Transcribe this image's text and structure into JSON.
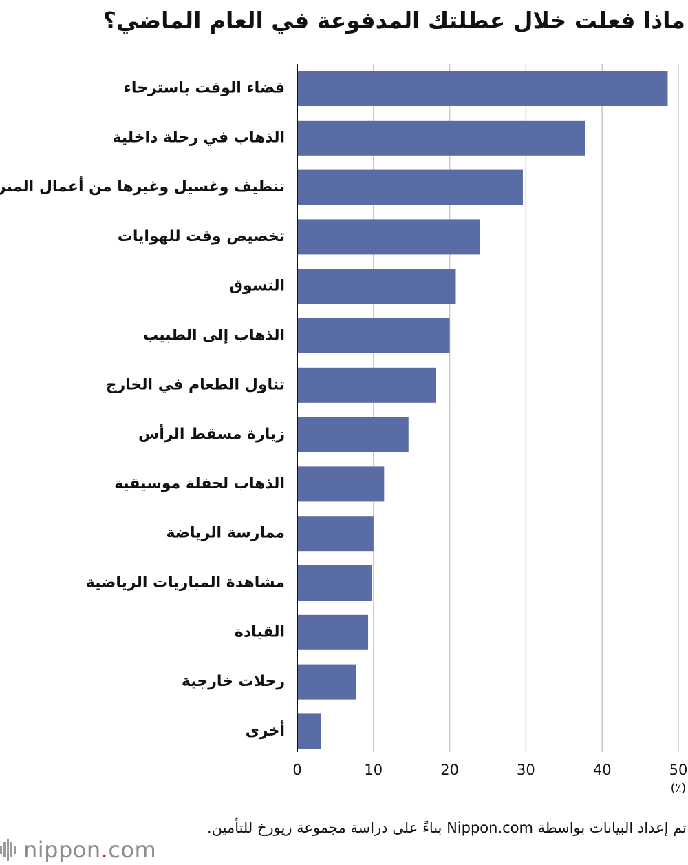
{
  "chart_data": {
    "type": "bar",
    "orientation": "horizontal",
    "title": "ماذا فعلت خلال عطلتك المدفوعة في العام الماضي؟",
    "categories": [
      "قضاء الوقت باسترخاء",
      "الذهاب في رحلة داخلية",
      "تنظيف وغسيل وغيرها من أعمال المنزل",
      "تخصيص وقت للهوايات",
      "التسوق",
      "الذهاب إلى الطبيب",
      "تناول الطعام في الخارج",
      "زيارة مسقط الرأس",
      "الذهاب لحفلة موسيقية",
      "ممارسة الرياضة",
      "مشاهدة المباريات الرياضية",
      "القيادة",
      "رحلات خارجية",
      "أخرى"
    ],
    "values": [
      48.6,
      37.8,
      29.6,
      24.0,
      20.8,
      20.0,
      18.2,
      14.6,
      11.4,
      10.0,
      9.8,
      9.3,
      7.7,
      3.1
    ],
    "xlim": [
      0,
      50
    ],
    "xticks": [
      0,
      10,
      20,
      30,
      40,
      50
    ],
    "unit_label": "(٪)",
    "grid": true,
    "bar_color": "#5a6ca5"
  },
  "source_note": "تم إعداد البيانات بواسطة Nippon.com بناءً على دراسة مجموعة زيورخ للتأمين.",
  "brand": {
    "name_main": "nippon",
    "name_dot": ".",
    "name_tld": "com",
    "accent_color": "#e60012",
    "text_color": "#8c8c8c"
  }
}
